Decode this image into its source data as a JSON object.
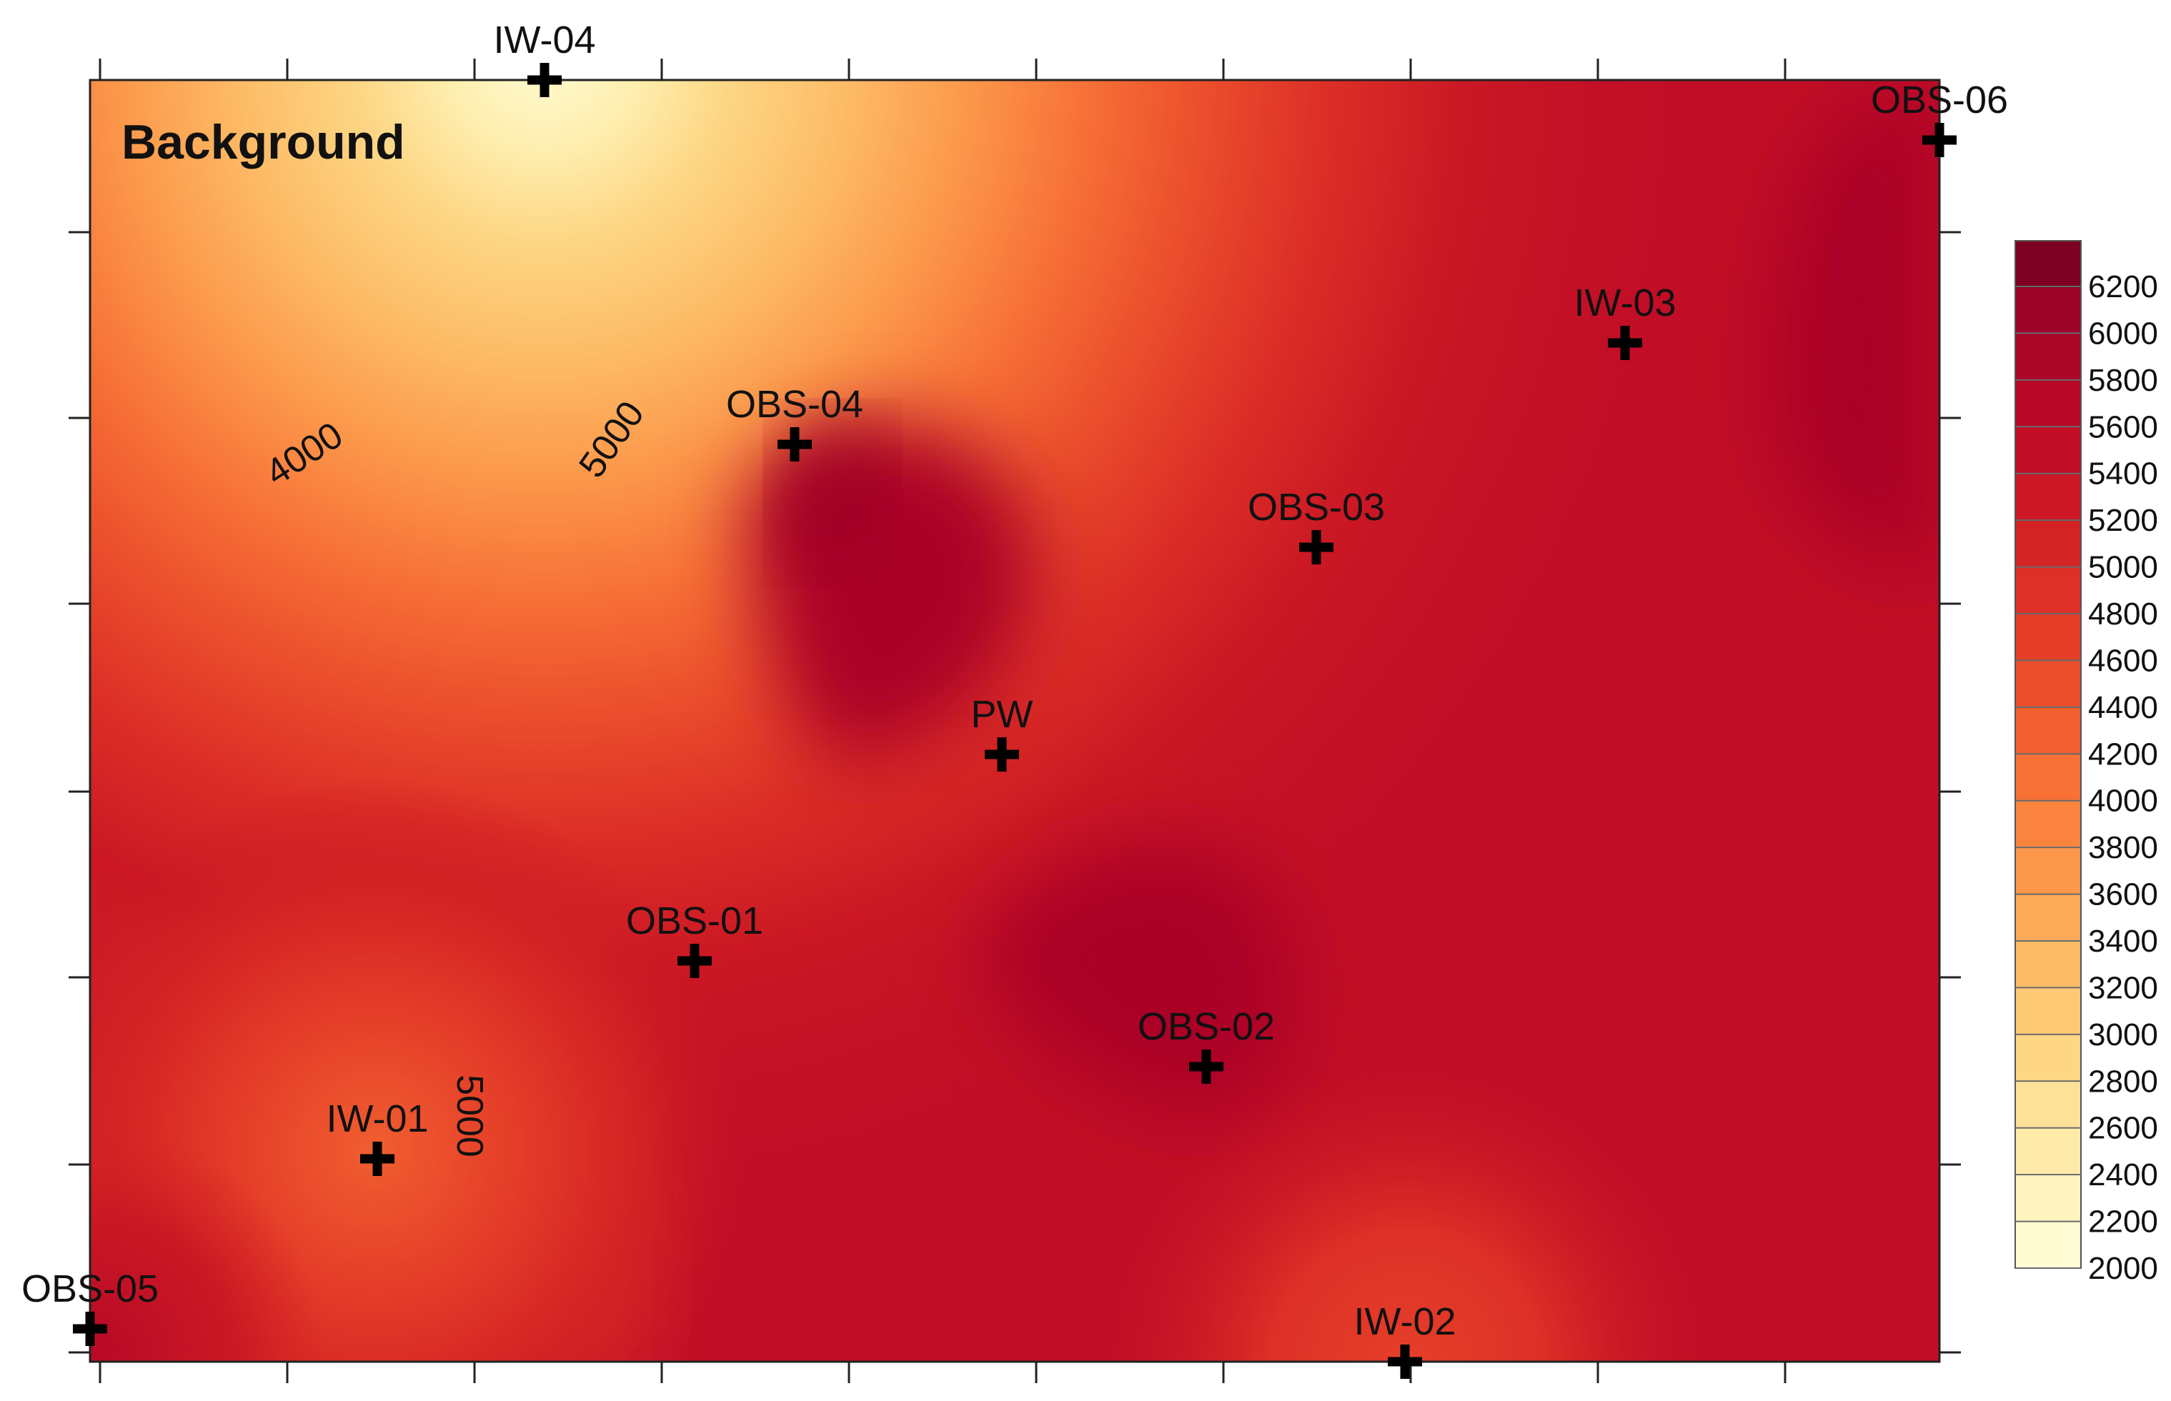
{
  "chart_data": {
    "type": "heatmap",
    "title": "Background",
    "variable_units": "",
    "grid": false,
    "legend_placement": "right",
    "colorbar": {
      "min": 2000,
      "max": 6200,
      "step": 200,
      "tick_labels": [
        "2000",
        "2200",
        "2400",
        "2600",
        "2800",
        "3000",
        "3200",
        "3400",
        "3600",
        "3800",
        "4000",
        "4200",
        "4400",
        "4600",
        "4800",
        "5000",
        "5200",
        "5400",
        "5600",
        "5800",
        "6000",
        "6200"
      ],
      "colors": [
        "#FFFBD3",
        "#FFF4C0",
        "#FEEBAA",
        "#FEE198",
        "#FED685",
        "#FDC975",
        "#FDBB66",
        "#FDAB59",
        "#FC984B",
        "#FB8540",
        "#F77137",
        "#F15E30",
        "#EB4E2C",
        "#E53F29",
        "#DD3027",
        "#D42324",
        "#CB1824",
        "#C10E26",
        "#B70927",
        "#AA0628",
        "#9C0327",
        "#7D0022"
      ]
    },
    "contour_labels": [
      "4000",
      "5000",
      "5000"
    ],
    "wells": [
      {
        "name": "IW-04"
      },
      {
        "name": "OBS-06"
      },
      {
        "name": "IW-03"
      },
      {
        "name": "OBS-04"
      },
      {
        "name": "OBS-03"
      },
      {
        "name": "PW"
      },
      {
        "name": "OBS-01"
      },
      {
        "name": "OBS-02"
      },
      {
        "name": "IW-01"
      },
      {
        "name": "OBS-05"
      },
      {
        "name": "IW-02"
      }
    ]
  }
}
